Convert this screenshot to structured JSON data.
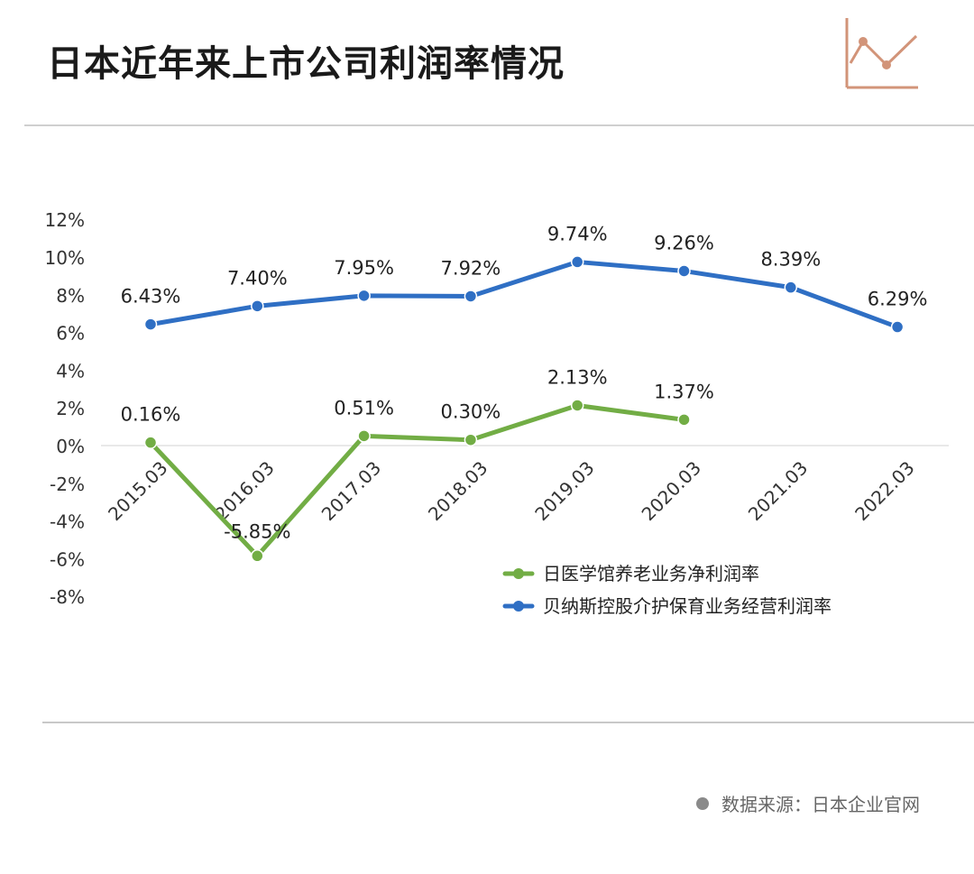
{
  "page": {
    "title": "日本近年来上市公司利润率情况",
    "source": "数据来源：日本企业官网"
  },
  "colors": {
    "green": "#72ad45",
    "blue": "#2f6fc4",
    "deco": "#d29479",
    "zero_line": "#e2e2e2"
  },
  "icons": {
    "deco": "line-chart-icon",
    "source": "bullet-dot-icon"
  },
  "chart_data": {
    "type": "line",
    "categories": [
      "2015.03",
      "2016.03",
      "2017.03",
      "2018.03",
      "2019.03",
      "2020.03",
      "2021.03",
      "2022.03"
    ],
    "ylim": [
      -8,
      12
    ],
    "yticks": [
      12,
      10,
      8,
      6,
      4,
      2,
      0,
      -2,
      -4,
      -6,
      -8
    ],
    "y_tick_labels": [
      "12%",
      "10%",
      "8%",
      "6%",
      "4%",
      "2%",
      "0%",
      "-2%",
      "-4%",
      "-6%",
      "-8%"
    ],
    "grid": false,
    "legend_position": "right",
    "series": [
      {
        "name": "日医学馆养老业务净利润率",
        "color_key": "green",
        "values": [
          0.16,
          -5.85,
          0.51,
          0.3,
          2.13,
          1.37,
          null,
          null
        ],
        "labels": [
          "0.16%",
          "-5.85%",
          "0.51%",
          "0.30%",
          "2.13%",
          "1.37%",
          null,
          null
        ]
      },
      {
        "name": "贝纳斯控股介护保育业务经营利润率",
        "color_key": "blue",
        "values": [
          6.43,
          7.4,
          7.95,
          7.92,
          9.74,
          9.26,
          8.39,
          6.29
        ],
        "labels": [
          "6.43%",
          "7.40%",
          "7.95%",
          "7.92%",
          "9.74%",
          "9.26%",
          "8.39%",
          "6.29%"
        ]
      }
    ]
  }
}
